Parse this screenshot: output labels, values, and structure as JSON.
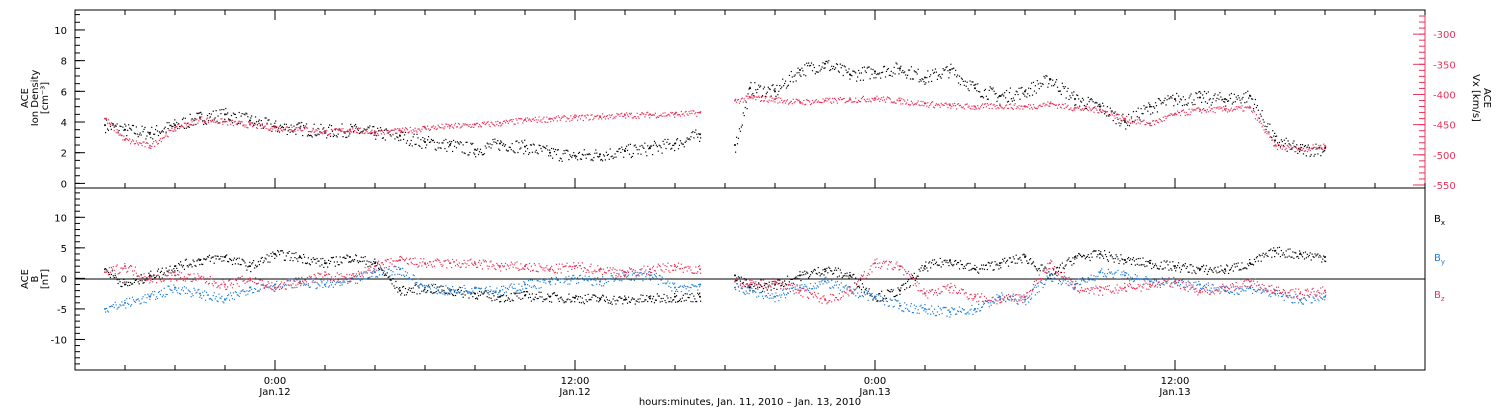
{
  "chart_data": [
    {
      "type": "scatter",
      "panel": "top",
      "ylabel_left_lines": [
        "ACE",
        "Ion Density",
        "[cm⁻³]"
      ],
      "ylabel_right_lines": [
        "ACE",
        "Vx [km/s]"
      ],
      "ylim_left": [
        -0.3,
        11.3
      ],
      "yticks_left": [
        0,
        2,
        4,
        6,
        8,
        10
      ],
      "ylim_right": [
        -555,
        -260
      ],
      "yticks_right": [
        -300,
        -350,
        -400,
        -450,
        -500,
        -550
      ],
      "grid": false,
      "colors": {
        "density": "#000000",
        "vx": "#e8345a"
      },
      "series": [
        {
          "axis": "left",
          "color": "#000000",
          "segments": [
            {
              "x": [
                -6.8,
                -6,
                -5,
                -4,
                -3,
                -2,
                -1,
                0,
                1,
                2,
                3,
                4,
                5,
                6,
                7,
                8,
                9,
                10,
                11,
                12,
                13,
                14,
                15,
                16,
                17
              ],
              "y": [
                3.8,
                3.5,
                3.3,
                3.8,
                4.3,
                4.5,
                4.1,
                3.7,
                3.6,
                3.4,
                3.5,
                3.3,
                3.1,
                2.7,
                2.5,
                2.2,
                2.6,
                2.4,
                2.0,
                1.8,
                1.9,
                2.1,
                2.3,
                2.6,
                3.2
              ]
            },
            {
              "x": [
                18.4,
                19,
                20,
                21,
                22,
                23,
                24,
                25,
                26,
                27,
                28,
                29,
                30,
                31,
                32,
                33,
                34,
                35,
                36,
                37,
                38,
                39,
                40,
                41,
                42
              ],
              "y": [
                2.5,
                6.2,
                6.0,
                7.4,
                7.8,
                7.1,
                7.3,
                7.5,
                6.9,
                7.4,
                6.2,
                5.7,
                6.0,
                6.8,
                5.5,
                5.0,
                4.0,
                5.0,
                5.5,
                5.6,
                5.5,
                5.7,
                2.8,
                2.2,
                2.3
              ]
            }
          ]
        },
        {
          "axis": "right",
          "color": "#e8345a",
          "segments": [
            {
              "x": [
                -6.8,
                -6,
                -5,
                -4,
                -3,
                -2,
                -1,
                0,
                1,
                2,
                3,
                4,
                5,
                6,
                7,
                8,
                9,
                10,
                11,
                12,
                13,
                14,
                15,
                16,
                17
              ],
              "y": [
                -440,
                -475,
                -485,
                -455,
                -440,
                -445,
                -450,
                -455,
                -455,
                -462,
                -458,
                -462,
                -460,
                -455,
                -452,
                -450,
                -447,
                -442,
                -440,
                -438,
                -436,
                -434,
                -433,
                -432,
                -430
              ]
            },
            {
              "x": [
                18.4,
                19,
                20,
                21,
                22,
                23,
                24,
                25,
                26,
                27,
                28,
                29,
                30,
                31,
                32,
                33,
                34,
                35,
                36,
                37,
                38,
                39,
                40,
                41,
                42
              ],
              "y": [
                -410,
                -405,
                -408,
                -412,
                -410,
                -408,
                -406,
                -410,
                -415,
                -418,
                -420,
                -418,
                -420,
                -415,
                -422,
                -425,
                -440,
                -448,
                -432,
                -425,
                -424,
                -422,
                -485,
                -490,
                -485
              ]
            }
          ]
        }
      ]
    },
    {
      "type": "scatter",
      "panel": "bottom",
      "ylabel_left_lines": [
        "ACE",
        "B",
        "[nT]"
      ],
      "ylim": [
        -15,
        14.8
      ],
      "yticks": [
        10,
        5,
        0,
        -5,
        -10
      ],
      "grid": false,
      "series": [
        {
          "name": "Bx",
          "color": "#000000",
          "segments": [
            {
              "x": [
                -6.8,
                -6,
                -5,
                -4,
                -3,
                -2,
                -1,
                0,
                1,
                2,
                3,
                4,
                5,
                6,
                7,
                8,
                9,
                10,
                11,
                12,
                13,
                14,
                15,
                16,
                17
              ],
              "y": [
                1.5,
                -1.0,
                0.5,
                2.0,
                3.0,
                3.5,
                2.0,
                4.0,
                3.5,
                2.5,
                3.5,
                2.5,
                -2.0,
                -1.5,
                -2.0,
                -2.5,
                -3.0,
                -2.8,
                -3.0,
                -3.2,
                -3.3,
                -3.5,
                -3.3,
                -3.0,
                -3.0
              ]
            },
            {
              "x": [
                18.4,
                19,
                20,
                21,
                22,
                23,
                24,
                25,
                26,
                27,
                28,
                29,
                30,
                31,
                32,
                33,
                34,
                35,
                36,
                37,
                38,
                39,
                40,
                41,
                42
              ],
              "y": [
                0.5,
                -1.5,
                -1.0,
                0.5,
                1.5,
                0.5,
                -3.0,
                -2.0,
                2.0,
                3.0,
                1.5,
                2.5,
                3.5,
                0.5,
                3.5,
                4.0,
                3.0,
                2.5,
                2.0,
                1.5,
                1.5,
                2.5,
                4.5,
                4.0,
                3.5
              ]
            }
          ]
        },
        {
          "name": "By",
          "color": "#1f7fd6",
          "segments": [
            {
              "x": [
                -6.8,
                -6,
                -5,
                -4,
                -3,
                -2,
                -1,
                0,
                1,
                2,
                3,
                4,
                5,
                6,
                7,
                8,
                9,
                10,
                11,
                12,
                13,
                14,
                15,
                16,
                17
              ],
              "y": [
                -5.0,
                -4.0,
                -3.0,
                -1.5,
                -2.5,
                -3.5,
                -1.5,
                -1.0,
                -0.5,
                -1.0,
                -0.5,
                1.0,
                1.5,
                -1.5,
                -2.0,
                -1.5,
                -2.0,
                -1.0,
                -0.5,
                0.0,
                -0.5,
                0.5,
                0.5,
                -1.5,
                -1.0
              ]
            },
            {
              "x": [
                18.4,
                19,
                20,
                21,
                22,
                23,
                24,
                25,
                26,
                27,
                28,
                29,
                30,
                31,
                32,
                33,
                34,
                35,
                36,
                37,
                38,
                39,
                40,
                41,
                42
              ],
              "y": [
                -1.5,
                -2.0,
                -3.0,
                -1.5,
                -0.5,
                -2.0,
                -3.0,
                -4.5,
                -5.0,
                -5.5,
                -5.0,
                -3.0,
                -3.5,
                0.5,
                -1.0,
                1.0,
                0.5,
                -0.5,
                -0.5,
                -1.0,
                -2.0,
                -1.5,
                -2.5,
                -3.5,
                -3.0
              ]
            }
          ]
        },
        {
          "name": "Bz",
          "color": "#e8345a",
          "segments": [
            {
              "x": [
                -6.8,
                -6,
                -5,
                -4,
                -3,
                -2,
                -1,
                0,
                1,
                2,
                3,
                4,
                5,
                6,
                7,
                8,
                9,
                10,
                11,
                12,
                13,
                14,
                15,
                16,
                17
              ],
              "y": [
                1.0,
                2.0,
                0.0,
                0.5,
                0.0,
                -1.0,
                0.0,
                -1.5,
                -0.5,
                0.5,
                0.0,
                2.0,
                3.0,
                2.5,
                2.5,
                2.5,
                2.0,
                2.0,
                1.5,
                2.0,
                1.5,
                1.0,
                1.5,
                2.0,
                1.5
              ]
            },
            {
              "x": [
                18.4,
                19,
                20,
                21,
                22,
                23,
                24,
                25,
                26,
                27,
                28,
                29,
                30,
                31,
                32,
                33,
                34,
                35,
                36,
                37,
                38,
                39,
                40,
                41,
                42
              ],
              "y": [
                -0.5,
                -1.0,
                -0.5,
                -2.0,
                -3.5,
                -2.0,
                2.5,
                2.0,
                -2.5,
                -1.5,
                -3.0,
                -3.5,
                -3.0,
                2.5,
                -1.5,
                -2.0,
                -1.5,
                -1.0,
                -0.5,
                -2.0,
                -1.5,
                -0.5,
                -2.0,
                -2.5,
                -2.0
              ]
            }
          ]
        }
      ],
      "legend": [
        {
          "letter": "B",
          "sub": "x",
          "color": "#000000"
        },
        {
          "letter": "B",
          "sub": "y",
          "color": "#1f7fd6"
        },
        {
          "letter": "B",
          "sub": "z",
          "color": "#e8345a"
        }
      ]
    }
  ],
  "x_axis": {
    "range_hours": [
      -8.0,
      46.0
    ],
    "major_ticks": [
      {
        "hour": 0,
        "time": "0:00",
        "date": "Jan.12"
      },
      {
        "hour": 12,
        "time": "12:00",
        "date": "Jan.12"
      },
      {
        "hour": 24,
        "time": "0:00",
        "date": "Jan.13"
      },
      {
        "hour": 36,
        "time": "12:00",
        "date": "Jan.13"
      }
    ],
    "xlabel": "hours:minutes, Jan. 11, 2010 – Jan. 13, 2010"
  }
}
